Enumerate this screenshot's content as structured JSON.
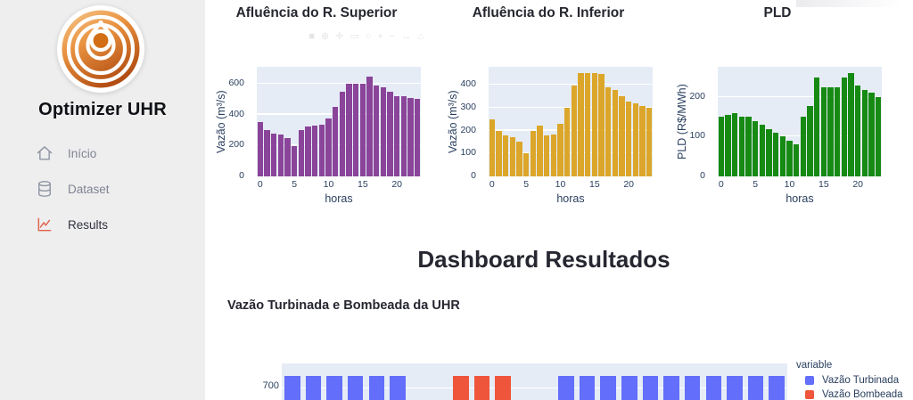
{
  "sidebar": {
    "title": "Optimizer UHR",
    "items": [
      {
        "label": "Início",
        "icon": "home-icon"
      },
      {
        "label": "Dataset",
        "icon": "database-icon"
      },
      {
        "label": "Results",
        "icon": "line-chart-icon",
        "active": true
      }
    ]
  },
  "main": {
    "heading": "Dashboard Resultados",
    "subheading": "Vazão Turbinada e Bombeada da UHR"
  },
  "modebar_icons": [
    {
      "name": "camera-icon",
      "glyph": "■"
    },
    {
      "name": "zoom-icon",
      "glyph": "⊕"
    },
    {
      "name": "pan-icon",
      "glyph": "✛"
    },
    {
      "name": "box-select-icon",
      "glyph": "▭"
    },
    {
      "name": "lasso-icon",
      "glyph": "○"
    },
    {
      "name": "zoom-in-icon",
      "glyph": "+"
    },
    {
      "name": "zoom-out-icon",
      "glyph": "−"
    },
    {
      "name": "autoscale-icon",
      "glyph": "↔"
    },
    {
      "name": "reset-axes-icon",
      "glyph": "⌂"
    }
  ],
  "colors": {
    "sidebar_bg": "#eeeeee",
    "plot_bg": "#e5ecf6",
    "axis_text": "#2a3f5f",
    "superior_bars": "#8a4499",
    "inferior_bars": "#dca62a",
    "pld_bars": "#168a12",
    "turbinada": "#636efa",
    "bombeada": "#ef553b"
  },
  "chart_data": [
    {
      "type": "bar",
      "title": "Afluência do R. Superior",
      "xlabel": "horas",
      "ylabel": "Vazão (m³/s)",
      "x": [
        0,
        1,
        2,
        3,
        4,
        5,
        6,
        7,
        8,
        9,
        10,
        11,
        12,
        13,
        14,
        15,
        16,
        17,
        18,
        19,
        20,
        21,
        22,
        23
      ],
      "values": [
        350,
        300,
        280,
        272,
        248,
        198,
        298,
        325,
        330,
        335,
        378,
        450,
        548,
        598,
        600,
        598,
        648,
        590,
        578,
        548,
        522,
        520,
        510,
        500
      ],
      "color": "#8a4499",
      "yticks": [
        0,
        200,
        400,
        600
      ],
      "xticks": [
        0,
        5,
        10,
        15,
        20
      ],
      "ylim": [
        0,
        710
      ],
      "grid": true,
      "legend": false
    },
    {
      "type": "bar",
      "title": "Afluência do R. Inferior",
      "xlabel": "horas",
      "ylabel": "Vazão (m³/s)",
      "x": [
        0,
        1,
        2,
        3,
        4,
        5,
        6,
        7,
        8,
        9,
        10,
        11,
        12,
        13,
        14,
        15,
        16,
        17,
        18,
        19,
        20,
        21,
        22,
        23
      ],
      "values": [
        250,
        200,
        180,
        172,
        150,
        100,
        198,
        222,
        178,
        183,
        228,
        300,
        398,
        450,
        452,
        450,
        448,
        388,
        378,
        348,
        325,
        320,
        308,
        298
      ],
      "color": "#dca62a",
      "yticks": [
        0,
        100,
        200,
        300,
        400
      ],
      "xticks": [
        0,
        5,
        10,
        15,
        20
      ],
      "ylim": [
        0,
        478
      ],
      "grid": true,
      "legend": false
    },
    {
      "type": "bar",
      "title": "PLD",
      "xlabel": "horas",
      "ylabel": "PLD (R$/MWh)",
      "x": [
        0,
        1,
        2,
        3,
        4,
        5,
        6,
        7,
        8,
        9,
        10,
        11,
        12,
        13,
        14,
        15,
        16,
        17,
        18,
        19,
        20,
        21,
        22,
        23
      ],
      "values": [
        150,
        155,
        160,
        150,
        150,
        140,
        130,
        120,
        110,
        100,
        90,
        80,
        150,
        178,
        250,
        225,
        225,
        225,
        248,
        260,
        228,
        218,
        210,
        200
      ],
      "color": "#168a12",
      "yticks": [
        0,
        100,
        200
      ],
      "xticks": [
        0,
        5,
        10,
        15,
        20
      ],
      "ylim": [
        0,
        276
      ],
      "grid": true,
      "legend": false
    },
    {
      "type": "bar",
      "title": "Vazão Turbinada e Bombeada da UHR",
      "x": [
        0,
        1,
        2,
        3,
        4,
        5,
        6,
        7,
        8,
        9,
        10,
        11,
        12,
        13,
        14,
        15,
        16,
        17,
        18,
        19,
        20,
        21,
        22,
        23
      ],
      "series": [
        {
          "name": "Vazão Turbinada",
          "color": "#636efa",
          "values": [
            750,
            750,
            750,
            750,
            750,
            750,
            0,
            0,
            0,
            0,
            0,
            0,
            0,
            750,
            750,
            750,
            750,
            750,
            750,
            750,
            750,
            750,
            750,
            750
          ]
        },
        {
          "name": "Vazão Bombeada",
          "color": "#ef553b",
          "values": [
            0,
            0,
            0,
            0,
            0,
            0,
            0,
            0,
            750,
            750,
            750,
            0,
            0,
            0,
            0,
            0,
            0,
            0,
            0,
            0,
            0,
            0,
            0,
            0
          ]
        }
      ],
      "legend_title": "variable",
      "yticks": [
        700
      ],
      "grid": true,
      "legend": true,
      "legend_position": "right",
      "clipped_bottom": true
    }
  ]
}
